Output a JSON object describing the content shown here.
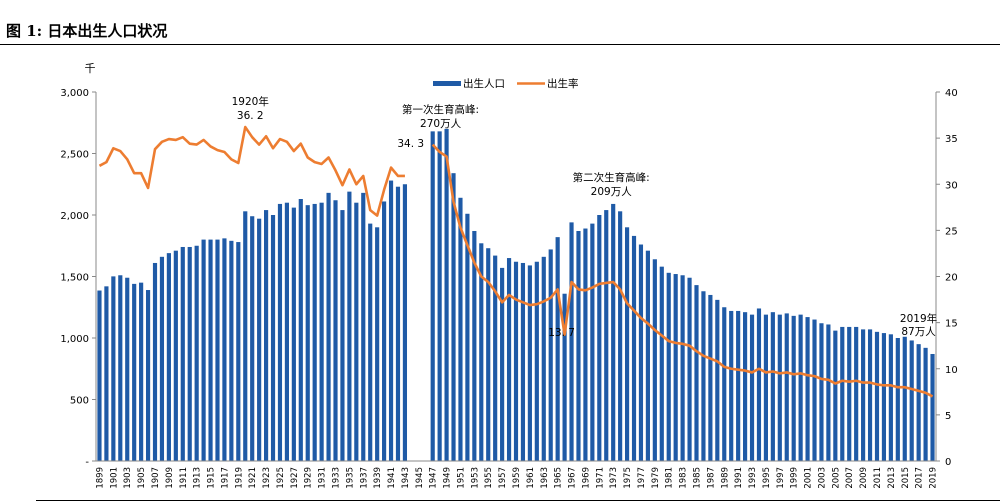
{
  "figure": {
    "title": "图 1: 日本出生人口状况"
  },
  "chart_data": {
    "type": "bar",
    "ylabel_left": "千",
    "ylim_left": [
      0,
      3000
    ],
    "yticks_left": [
      0,
      500,
      1000,
      1500,
      2000,
      2500,
      3000
    ],
    "ytick_labels_left": [
      "-",
      "500",
      "1,000",
      "1,500",
      "2,000",
      "2,500",
      "3,000"
    ],
    "ylim_right": [
      0,
      40
    ],
    "yticks_right": [
      0,
      5,
      10,
      15,
      20,
      25,
      30,
      35,
      40
    ],
    "ytick_labels_right": [
      "0",
      "5",
      "10",
      "15",
      "20",
      "25",
      "30",
      "35",
      "40"
    ],
    "categories": [
      1899,
      1900,
      1901,
      1902,
      1903,
      1904,
      1905,
      1906,
      1907,
      1908,
      1909,
      1910,
      1911,
      1912,
      1913,
      1914,
      1915,
      1916,
      1917,
      1918,
      1919,
      1920,
      1921,
      1922,
      1923,
      1924,
      1925,
      1926,
      1927,
      1928,
      1929,
      1930,
      1931,
      1932,
      1933,
      1934,
      1935,
      1936,
      1937,
      1938,
      1939,
      1940,
      1941,
      1942,
      1943,
      1944,
      1945,
      1946,
      1947,
      1948,
      1949,
      1950,
      1951,
      1952,
      1953,
      1954,
      1955,
      1956,
      1957,
      1958,
      1959,
      1960,
      1961,
      1962,
      1963,
      1964,
      1965,
      1966,
      1967,
      1968,
      1969,
      1970,
      1971,
      1972,
      1973,
      1974,
      1975,
      1976,
      1977,
      1978,
      1979,
      1980,
      1981,
      1982,
      1983,
      1984,
      1985,
      1986,
      1987,
      1988,
      1989,
      1990,
      1991,
      1992,
      1993,
      1994,
      1995,
      1996,
      1997,
      1998,
      1999,
      2000,
      2001,
      2002,
      2003,
      2004,
      2005,
      2006,
      2007,
      2008,
      2009,
      2010,
      2011,
      2012,
      2013,
      2014,
      2015,
      2016,
      2017,
      2018,
      2019
    ],
    "x_tick_labels": [
      "1899",
      "1901",
      "1903",
      "1905",
      "1907",
      "1909",
      "1911",
      "1913",
      "1915",
      "1917",
      "1919",
      "1921",
      "1923",
      "1925",
      "1927",
      "1929",
      "1931",
      "1933",
      "1935",
      "1937",
      "1939",
      "1941",
      "1943",
      "1945",
      "1947",
      "1949",
      "1951",
      "1953",
      "1955",
      "1957",
      "1959",
      "1961",
      "1963",
      "1965",
      "1967",
      "1969",
      "1971",
      "1973",
      "1975",
      "1977",
      "1979",
      "1981",
      "1983",
      "1985",
      "1987",
      "1989",
      "1991",
      "1993",
      "1995",
      "1997",
      "1999",
      "2001",
      "2003",
      "2005",
      "2007",
      "2009",
      "2011",
      "2013",
      "2015",
      "2017",
      "2019"
    ],
    "series": [
      {
        "name": "出生人口",
        "kind": "bar",
        "axis": "left",
        "color": "#1f5aa6",
        "values": [
          1386,
          1420,
          1501,
          1510,
          1490,
          1440,
          1450,
          1390,
          1610,
          1660,
          1690,
          1710,
          1740,
          1740,
          1750,
          1800,
          1800,
          1800,
          1810,
          1790,
          1780,
          2030,
          1990,
          1970,
          2040,
          2000,
          2090,
          2100,
          2060,
          2130,
          2080,
          2090,
          2100,
          2180,
          2120,
          2040,
          2190,
          2100,
          2180,
          1930,
          1900,
          2110,
          2280,
          2230,
          2250,
          null,
          null,
          null,
          2680,
          2680,
          2700,
          2340,
          2140,
          2010,
          1870,
          1770,
          1730,
          1670,
          1570,
          1650,
          1620,
          1610,
          1590,
          1620,
          1660,
          1720,
          1820,
          1360,
          1940,
          1870,
          1890,
          1930,
          2000,
          2040,
          2090,
          2030,
          1900,
          1830,
          1760,
          1710,
          1640,
          1580,
          1530,
          1520,
          1510,
          1490,
          1430,
          1380,
          1350,
          1310,
          1250,
          1220,
          1220,
          1210,
          1190,
          1240,
          1190,
          1210,
          1190,
          1200,
          1180,
          1190,
          1170,
          1150,
          1120,
          1110,
          1060,
          1090,
          1090,
          1090,
          1070,
          1070,
          1050,
          1040,
          1030,
          1000,
          1010,
          980,
          950,
          920,
          870
        ]
      },
      {
        "name": "出生率",
        "kind": "line",
        "axis": "right",
        "color": "#ed7d31",
        "values": [
          32.0,
          32.4,
          33.9,
          33.6,
          32.7,
          31.2,
          31.2,
          29.6,
          33.8,
          34.6,
          34.9,
          34.8,
          35.1,
          34.4,
          34.3,
          34.8,
          34.1,
          33.7,
          33.5,
          32.7,
          32.3,
          36.2,
          35.1,
          34.3,
          35.2,
          33.9,
          34.9,
          34.6,
          33.6,
          34.4,
          32.9,
          32.4,
          32.2,
          32.9,
          31.5,
          29.9,
          31.6,
          30.0,
          30.9,
          27.2,
          26.6,
          29.4,
          31.8,
          30.9,
          30.9,
          null,
          null,
          null,
          34.3,
          33.5,
          33.0,
          28.1,
          25.3,
          23.4,
          21.5,
          20.0,
          19.4,
          18.4,
          17.2,
          18.0,
          17.5,
          17.2,
          16.9,
          17.0,
          17.3,
          17.7,
          18.6,
          13.7,
          19.4,
          18.6,
          18.5,
          18.8,
          19.2,
          19.3,
          19.4,
          18.6,
          17.1,
          16.3,
          15.5,
          14.9,
          14.2,
          13.6,
          13.0,
          12.8,
          12.7,
          12.5,
          11.9,
          11.4,
          11.1,
          10.8,
          10.2,
          10.0,
          9.9,
          9.8,
          9.6,
          10.0,
          9.6,
          9.7,
          9.5,
          9.6,
          9.4,
          9.5,
          9.3,
          9.2,
          8.9,
          8.8,
          8.4,
          8.7,
          8.6,
          8.7,
          8.5,
          8.5,
          8.3,
          8.2,
          8.2,
          8.0,
          8.0,
          7.8,
          7.6,
          7.4,
          7.0
        ]
      }
    ],
    "annotations": [
      {
        "id": "ann-1920-year",
        "text": "1920年",
        "year": 1920
      },
      {
        "id": "ann-1920-value",
        "text": "36. 2",
        "year": 1920
      },
      {
        "id": "ann-first-peak-title",
        "text": "第一次生育高峰:",
        "year": 1949
      },
      {
        "id": "ann-first-peak-value",
        "text": "270万人",
        "year": 1949
      },
      {
        "id": "ann-1947-rate",
        "text": "34. 3",
        "year": 1947
      },
      {
        "id": "ann-second-peak-title",
        "text": "第二次生育高峰:",
        "year": 1973
      },
      {
        "id": "ann-second-peak-value",
        "text": "209万人",
        "year": 1973
      },
      {
        "id": "ann-1966-rate",
        "text": "13. 7",
        "year": 1966
      },
      {
        "id": "ann-2019-year",
        "text": "2019年",
        "year": 2019
      },
      {
        "id": "ann-2019-value",
        "text": "87万人",
        "year": 2019
      }
    ],
    "legend": {
      "placement": "top-center",
      "items": [
        "出生人口",
        "出生率"
      ]
    }
  }
}
